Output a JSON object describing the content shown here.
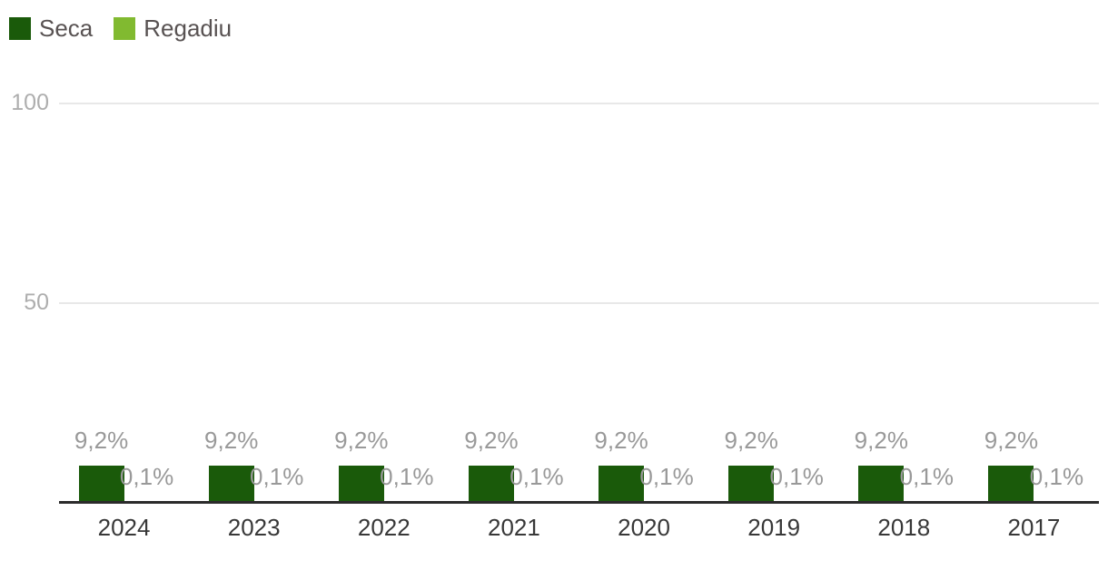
{
  "chart_data": {
    "type": "bar",
    "title": "",
    "xlabel": "",
    "ylabel": "",
    "categories": [
      "2024",
      "2023",
      "2022",
      "2021",
      "2020",
      "2019",
      "2018",
      "2017"
    ],
    "series": [
      {
        "name": "Seca",
        "color": "#1a5a0a",
        "values": [
          9.2,
          9.2,
          9.2,
          9.2,
          9.2,
          9.2,
          9.2,
          9.2
        ],
        "labels": [
          "9,2%",
          "9,2%",
          "9,2%",
          "9,2%",
          "9,2%",
          "9,2%",
          "9,2%",
          "9,2%"
        ]
      },
      {
        "name": "Regadiu",
        "color": "#81ba30",
        "values": [
          0.1,
          0.1,
          0.1,
          0.1,
          0.1,
          0.1,
          0.1,
          0.1
        ],
        "labels": [
          "0,1%",
          "0,1%",
          "0,1%",
          "0,1%",
          "0,1%",
          "0,1%",
          "0,1%",
          "0,1%"
        ]
      }
    ],
    "ylim": [
      0,
      100
    ],
    "yticks": [
      {
        "value": 100,
        "label": "100"
      },
      {
        "value": 50,
        "label": "50"
      }
    ],
    "grid": true,
    "legend_position": "top-left"
  },
  "colors": {
    "data_label": "#999999",
    "y_axis_label": "#aeaeae",
    "category_label": "#383838",
    "legend_text": "#585252",
    "gridline": "#e8e8e8",
    "axis_line": "#2b2b2b",
    "background": "#ffffff"
  }
}
